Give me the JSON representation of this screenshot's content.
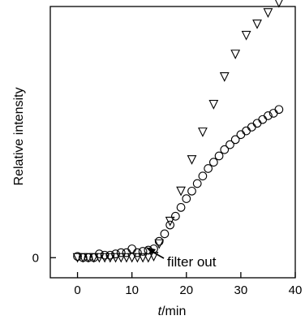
{
  "chart_data": {
    "type": "scatter",
    "xlabel_italic": "t",
    "xlabel_rest": "/min",
    "ylabel": "Relative intensity",
    "xlim": [
      -5,
      40
    ],
    "ylim": [
      -0.08,
      1.0
    ],
    "xticks": [
      0,
      10,
      20,
      30,
      40
    ],
    "yticks": [
      0
    ],
    "yticklabels": [
      "0"
    ],
    "annotation": {
      "text": "filter out",
      "x": 13.5,
      "y": 0.0
    },
    "series": [
      {
        "marker": "circle",
        "points": [
          [
            0,
            0.005
          ],
          [
            1,
            0.0
          ],
          [
            2,
            0.0
          ],
          [
            3,
            0.0
          ],
          [
            4,
            0.015
          ],
          [
            5,
            0.01
          ],
          [
            6,
            0.01
          ],
          [
            7,
            0.015
          ],
          [
            8,
            0.02
          ],
          [
            9,
            0.02
          ],
          [
            10,
            0.035
          ],
          [
            11,
            0.02
          ],
          [
            12,
            0.025
          ],
          [
            13,
            0.03
          ],
          [
            14,
            0.035
          ],
          [
            15,
            0.065
          ],
          [
            16,
            0.095
          ],
          [
            17,
            0.13
          ],
          [
            18,
            0.165
          ],
          [
            19,
            0.2
          ],
          [
            20,
            0.235
          ],
          [
            21,
            0.265
          ],
          [
            22,
            0.295
          ],
          [
            23,
            0.325
          ],
          [
            24,
            0.355
          ],
          [
            25,
            0.38
          ],
          [
            26,
            0.405
          ],
          [
            27,
            0.43
          ],
          [
            28,
            0.45
          ],
          [
            29,
            0.47
          ],
          [
            30,
            0.49
          ],
          [
            31,
            0.505
          ],
          [
            32,
            0.52
          ],
          [
            33,
            0.535
          ],
          [
            34,
            0.55
          ],
          [
            35,
            0.565
          ],
          [
            36,
            0.575
          ],
          [
            37,
            0.59
          ]
        ]
      },
      {
        "marker": "triangle-down",
        "points": [
          [
            0,
            0.0
          ],
          [
            1,
            0.0
          ],
          [
            2,
            0.0
          ],
          [
            3,
            0.0
          ],
          [
            4,
            0.0
          ],
          [
            5,
            0.0
          ],
          [
            6,
            0.0
          ],
          [
            7,
            0.0
          ],
          [
            8,
            0.0
          ],
          [
            9,
            0.0
          ],
          [
            10,
            0.0
          ],
          [
            11,
            0.0
          ],
          [
            12,
            0.0
          ],
          [
            13,
            0.0
          ],
          [
            14,
            0.005
          ],
          [
            15,
            0.055
          ],
          [
            17,
            0.145
          ],
          [
            19,
            0.265
          ],
          [
            21,
            0.39
          ],
          [
            23,
            0.5
          ],
          [
            25,
            0.61
          ],
          [
            27,
            0.72
          ],
          [
            29,
            0.81
          ],
          [
            31,
            0.885
          ],
          [
            33,
            0.93
          ],
          [
            35,
            0.975
          ],
          [
            37,
            1.015
          ]
        ]
      }
    ]
  }
}
